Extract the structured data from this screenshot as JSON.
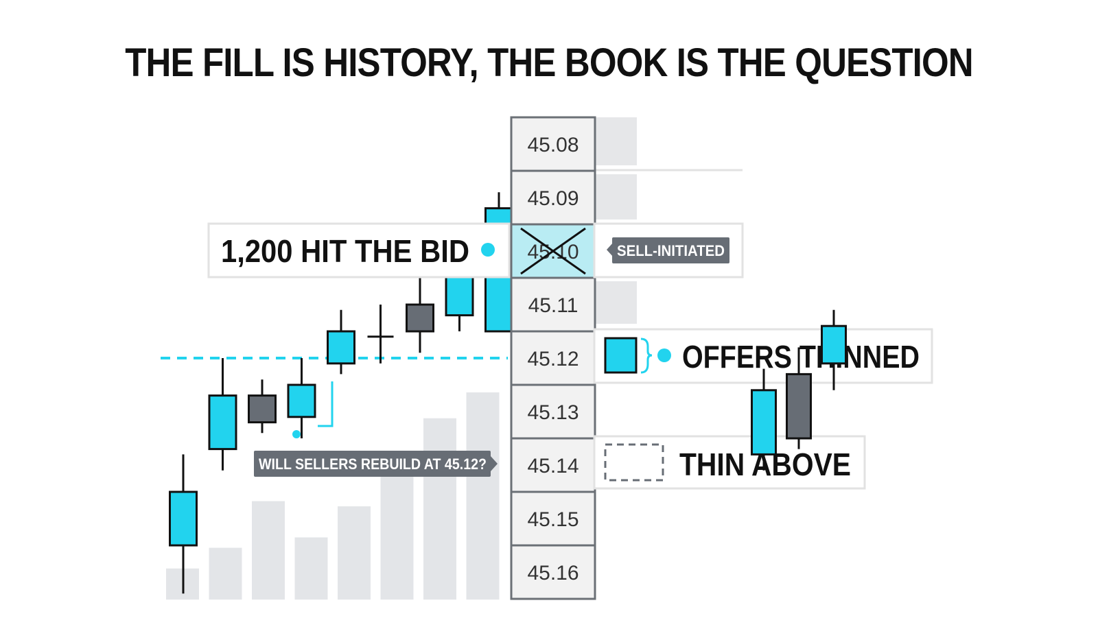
{
  "title": "THE FILL IS HISTORY, THE BOOK IS THE QUESTION",
  "colors": {
    "cyan": "#22d3ee",
    "dark": "#111111",
    "grey_candle": "#676d75",
    "bar": "#e3e5e8",
    "ladder_cell": "#f2f2f2",
    "ladder_border": "#6b7076",
    "callout_border": "#e2e2e2",
    "tag_bg": "#676d75"
  },
  "price_ladder": {
    "levels": [
      "45.08",
      "45.09",
      "45.10",
      "45.11",
      "45.12",
      "45.13",
      "45.14",
      "45.15",
      "45.16"
    ],
    "crossed_level": "45.10",
    "highlighted_level": "45.10"
  },
  "callouts": {
    "hit_bid": "1,200 HIT THE BID",
    "sell_tag": "SELL-INITIATED",
    "offers": "OFFERS THINNED",
    "thin": "THIN ABOVE",
    "question": "WILL SELLERS REBUILD AT 45.12?"
  },
  "candles_left": [
    {
      "o": 45.155,
      "c": 45.145,
      "h": 45.138,
      "l": 45.164,
      "fill": "cyan"
    },
    {
      "o": 45.137,
      "c": 45.127,
      "h": 45.12,
      "l": 45.141,
      "fill": "cyan"
    },
    {
      "o": 45.127,
      "c": 45.132,
      "h": 45.124,
      "l": 45.134,
      "fill": "grey"
    },
    {
      "o": 45.131,
      "c": 45.125,
      "h": 45.12,
      "l": 45.135,
      "fill": "cyan"
    },
    {
      "o": 45.121,
      "c": 45.115,
      "h": 45.111,
      "l": 45.123,
      "fill": "cyan"
    },
    {
      "o": 45.116,
      "c": 45.116,
      "h": 45.11,
      "l": 45.121,
      "fill": "doji"
    },
    {
      "o": 45.11,
      "c": 45.115,
      "h": 45.105,
      "l": 45.119,
      "fill": "grey"
    },
    {
      "o": 45.112,
      "c": 45.104,
      "h": 45.1,
      "l": 45.115,
      "fill": "cyan"
    },
    {
      "o": 45.115,
      "c": 45.092,
      "h": 45.089,
      "l": 45.115,
      "fill": "cyan"
    }
  ],
  "volume_bars": [
    6,
    10,
    19,
    12,
    18,
    26,
    35,
    40
  ],
  "candles_right": [
    {
      "o": 45.138,
      "c": 45.126,
      "h": 45.122,
      "l": 45.141,
      "fill": "cyan"
    },
    {
      "o": 45.123,
      "c": 45.135,
      "h": 45.118,
      "l": 45.137,
      "fill": "grey"
    },
    {
      "o": 45.121,
      "c": 45.114,
      "h": 45.111,
      "l": 45.126,
      "fill": "cyan"
    }
  ],
  "dashed_level": 45.12
}
